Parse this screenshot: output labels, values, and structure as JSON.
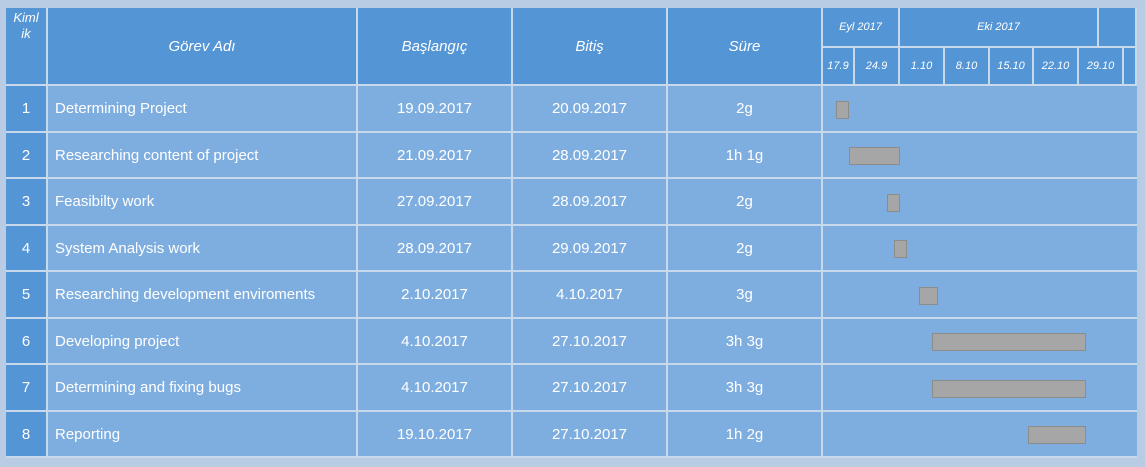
{
  "headers": {
    "id": "Kimlik",
    "name": "Görev Adı",
    "start": "Başlangıç",
    "end": "Bitiş",
    "duration": "Süre",
    "month1": "Eyl 2017",
    "month2": "Eki 2017",
    "weeks": [
      "17.9",
      "24.9",
      "1.10",
      "8.10",
      "15.10",
      "22.10",
      "29.10"
    ]
  },
  "tasks": [
    {
      "id": "1",
      "name": "Determining Project",
      "start": "19.09.2017",
      "end": "20.09.2017",
      "duration": "2g"
    },
    {
      "id": "2",
      "name": "Researching content of project",
      "start": "21.09.2017",
      "end": "28.09.2017",
      "duration": "1h 1g"
    },
    {
      "id": "3",
      "name": "Feasibilty work",
      "start": "27.09.2017",
      "end": "28.09.2017",
      "duration": "2g"
    },
    {
      "id": "4",
      "name": "System Analysis work",
      "start": "28.09.2017",
      "end": "29.09.2017",
      "duration": "2g"
    },
    {
      "id": "5",
      "name": "Researching development enviroments",
      "start": "2.10.2017",
      "end": "4.10.2017",
      "duration": "3g"
    },
    {
      "id": "6",
      "name": "Developing project",
      "start": "4.10.2017",
      "end": "27.10.2017",
      "duration": "3h 3g"
    },
    {
      "id": "7",
      "name": "Determining and fixing bugs",
      "start": "4.10.2017",
      "end": "27.10.2017",
      "duration": "3h 3g"
    },
    {
      "id": "8",
      "name": "Reporting",
      "start": "19.10.2017",
      "end": "27.10.2017",
      "duration": "1h 2g"
    }
  ],
  "colors": {
    "header": "#5495d5",
    "row": "#7eaedf",
    "bar": "#a6a6a6",
    "grid": "#c9d9ec"
  }
}
